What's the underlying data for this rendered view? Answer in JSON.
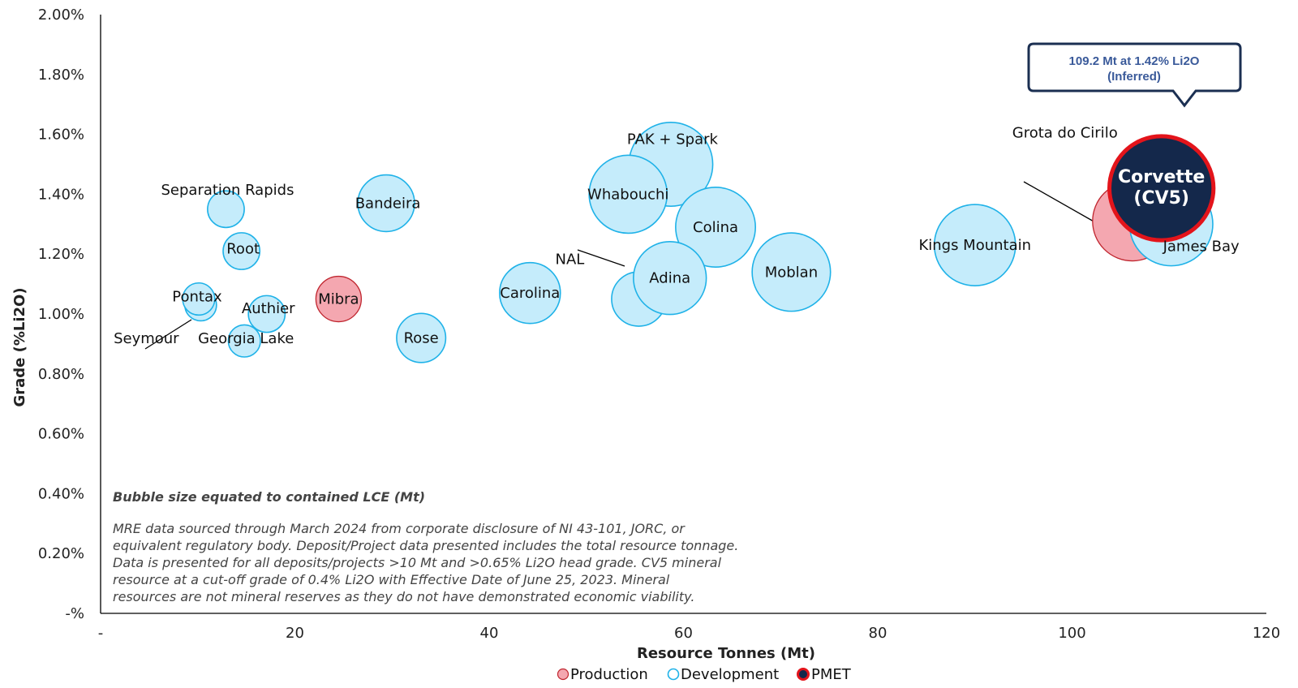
{
  "chart_data": {
    "type": "bubble",
    "xlabel": "Resource Tonnes (Mt)",
    "ylabel": "Grade (%Li2O)",
    "xlim": [
      0,
      120
    ],
    "ylim": [
      0,
      2.0
    ],
    "x_ticks": [
      "-",
      "20",
      "40",
      "60",
      "80",
      "100",
      "120"
    ],
    "y_ticks": [
      "-%",
      "0.20%",
      "0.40%",
      "0.60%",
      "0.80%",
      "1.00%",
      "1.20%",
      "1.40%",
      "1.60%",
      "1.80%",
      "2.00%"
    ],
    "legend": {
      "placement": "bottom",
      "items": [
        {
          "label": "Production",
          "type": "production"
        },
        {
          "label": "Development",
          "type": "development"
        },
        {
          "label": "PMET",
          "type": "pmet"
        }
      ]
    },
    "colors": {
      "production_fill": "#f4a7b0",
      "production_stroke": "#c0262f",
      "development_fill": "#c5ecfb",
      "development_stroke": "#1fb2e8",
      "pmet_fill": "#14284b",
      "pmet_stroke": "#e3141b"
    },
    "size_note": "Bubble size equated to contained LCE (Mt)",
    "disclaimer_lines": [
      "MRE data sourced through March 2024 from corporate disclosure of NI 43-101, JORC, or",
      "equivalent regulatory body. Deposit/Project data presented includes the total resource tonnage.",
      "Data is presented for all deposits/projects >10 Mt and >0.65% Li2O head grade. CV5 mineral",
      "resource at a cut-off grade of 0.4% Li2O with Effective Date of June 25, 2023. Mineral",
      "resources are not mineral reserves as they do not have demonstrated economic viability."
    ],
    "callout": {
      "line1": "109.2 Mt at 1.42% Li2O",
      "line2": "(Inferred)"
    },
    "series": [
      {
        "name": "Seymour",
        "type": "development",
        "x": 10.3,
        "y": 1.03,
        "size": 0.35
      },
      {
        "name": "Pontax",
        "type": "development",
        "x": 10.1,
        "y": 1.05,
        "size": 0.36
      },
      {
        "name": "Separation Rapids",
        "type": "development",
        "x": 12.9,
        "y": 1.35,
        "size": 0.47
      },
      {
        "name": "Root",
        "type": "development",
        "x": 14.5,
        "y": 1.21,
        "size": 0.47
      },
      {
        "name": "Georgia Lake",
        "type": "development",
        "x": 14.8,
        "y": 0.91,
        "size": 0.36
      },
      {
        "name": "Authier",
        "type": "development",
        "x": 17.1,
        "y": 1.0,
        "size": 0.47
      },
      {
        "name": "Mibra",
        "type": "production",
        "x": 24.5,
        "y": 1.05,
        "size": 0.72
      },
      {
        "name": "Bandeira",
        "type": "development",
        "x": 29.4,
        "y": 1.37,
        "size": 1.12
      },
      {
        "name": "Rose",
        "type": "development",
        "x": 33.0,
        "y": 0.92,
        "size": 0.84
      },
      {
        "name": "Carolina",
        "type": "development",
        "x": 44.2,
        "y": 1.07,
        "size": 1.29
      },
      {
        "name": "PAK + Spark",
        "type": "development",
        "x": 58.7,
        "y": 1.5,
        "size": 2.45
      },
      {
        "name": "Colina",
        "type": "development",
        "x": 63.3,
        "y": 1.29,
        "size": 2.22
      },
      {
        "name": "Whabouchi",
        "type": "development",
        "x": 54.3,
        "y": 1.4,
        "size": 2.12
      },
      {
        "name": "NAL",
        "type": "development",
        "x": 55.4,
        "y": 1.05,
        "size": 1.03
      },
      {
        "name": "Adina",
        "type": "development",
        "x": 58.6,
        "y": 1.12,
        "size": 1.85
      },
      {
        "name": "Moblan",
        "type": "development",
        "x": 71.1,
        "y": 1.14,
        "size": 2.14
      },
      {
        "name": "Kings Mountain",
        "type": "development",
        "x": 90.0,
        "y": 1.23,
        "size": 2.3
      },
      {
        "name": "Grota do Cirilo",
        "type": "production",
        "x": 106.2,
        "y": 1.31,
        "size": 2.2
      },
      {
        "name": "James Bay",
        "type": "development",
        "x": 110.2,
        "y": 1.3,
        "size": 2.42
      },
      {
        "name": "Corvette\n(CV5)",
        "type": "pmet",
        "x": 109.2,
        "y": 1.42,
        "size": 3.78
      }
    ]
  }
}
